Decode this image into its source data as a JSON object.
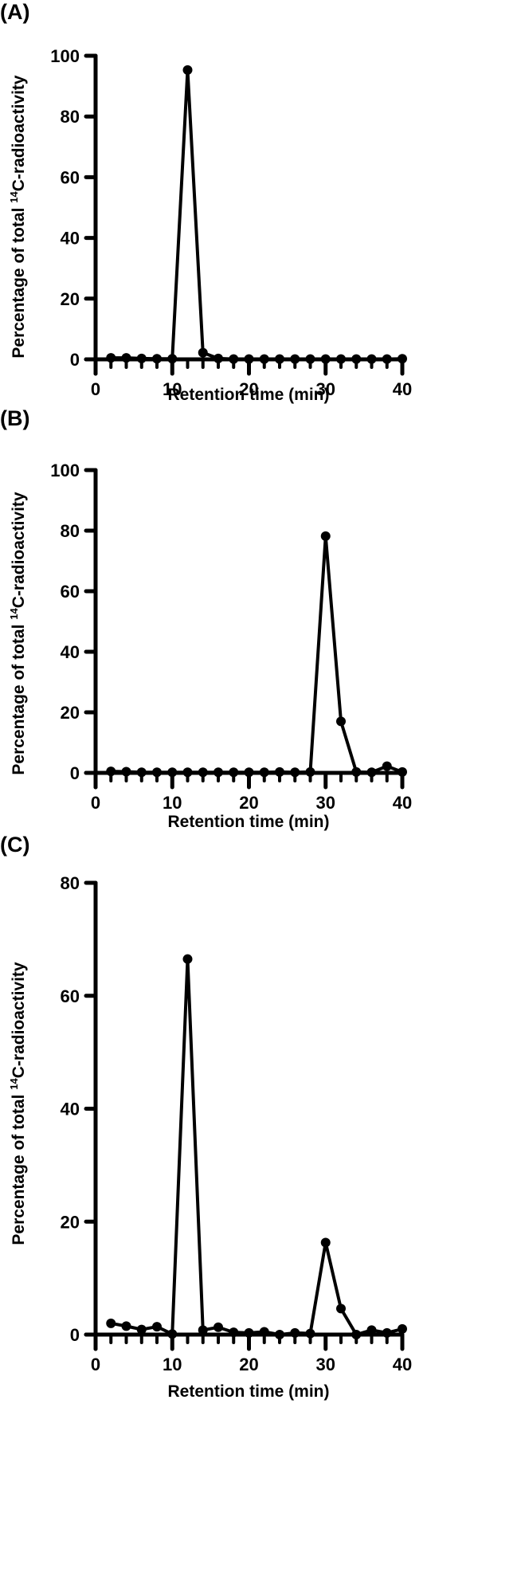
{
  "figure": {
    "panels": [
      {
        "label": "(A)",
        "ylabel": "Percentage of total ",
        "ylabel_sup": "14",
        "ylabel_tail": "C-radioactivity",
        "xlabel": "Retention time (min)"
      },
      {
        "label": "(B)",
        "ylabel": "Percentage of total ",
        "ylabel_sup": "14",
        "ylabel_tail": "C-radioactivity",
        "xlabel": "Retention time (min)"
      },
      {
        "label": "(C)",
        "ylabel": "Percentage of total ",
        "ylabel_sup": "14",
        "ylabel_tail": "C-radioactivity",
        "xlabel": "Retention time (min)"
      }
    ]
  },
  "chart_data": [
    {
      "type": "line",
      "title": "(A)",
      "xlabel": "Retention time (min)",
      "ylabel": "Percentage of total 14C-radioactivity",
      "xlim": [
        0,
        40
      ],
      "ylim": [
        0,
        100
      ],
      "xticks": [
        0,
        10,
        20,
        30,
        40
      ],
      "yticks": [
        0,
        20,
        40,
        60,
        80,
        100
      ],
      "grid": false,
      "legend": null,
      "x": [
        2,
        4,
        6,
        8,
        10,
        12,
        14,
        16,
        18,
        20,
        22,
        24,
        26,
        28,
        30,
        32,
        34,
        36,
        38,
        40
      ],
      "values": [
        0.5,
        0.5,
        0.3,
        0.2,
        0.2,
        95.3,
        2.2,
        0.3,
        0.1,
        0.1,
        0.1,
        0.1,
        0.1,
        0.1,
        0.1,
        0.1,
        0.1,
        0.1,
        0.1,
        0.2
      ]
    },
    {
      "type": "line",
      "title": "(B)",
      "xlabel": "Retention time (min)",
      "ylabel": "Percentage of total 14C-radioactivity",
      "xlim": [
        0,
        40
      ],
      "ylim": [
        0,
        100
      ],
      "xticks": [
        0,
        10,
        20,
        30,
        40
      ],
      "yticks": [
        0,
        20,
        40,
        60,
        80,
        100
      ],
      "grid": false,
      "legend": null,
      "x": [
        2,
        4,
        6,
        8,
        10,
        12,
        14,
        16,
        18,
        20,
        22,
        24,
        26,
        28,
        30,
        32,
        34,
        36,
        38,
        40
      ],
      "values": [
        0.5,
        0.4,
        0.2,
        0.2,
        0.2,
        0.2,
        0.2,
        0.2,
        0.2,
        0.2,
        0.2,
        0.3,
        0.2,
        0.3,
        78.2,
        17.0,
        0.3,
        0.2,
        2.2,
        0.3
      ]
    },
    {
      "type": "line",
      "title": "(C)",
      "xlabel": "Retention time (min)",
      "ylabel": "Percentage of total 14C-radioactivity",
      "xlim": [
        0,
        40
      ],
      "ylim": [
        0,
        80
      ],
      "xticks": [
        0,
        10,
        20,
        30,
        40
      ],
      "yticks": [
        0,
        20,
        40,
        60,
        80
      ],
      "grid": false,
      "legend": null,
      "x": [
        2,
        4,
        6,
        8,
        10,
        12,
        14,
        16,
        18,
        20,
        22,
        24,
        26,
        28,
        30,
        32,
        34,
        36,
        38,
        40
      ],
      "values": [
        2.0,
        1.5,
        0.9,
        1.4,
        0.1,
        66.5,
        0.8,
        1.3,
        0.4,
        0.3,
        0.5,
        0.0,
        0.3,
        0.2,
        16.3,
        4.6,
        0.0,
        0.8,
        0.3,
        1.0
      ]
    }
  ]
}
